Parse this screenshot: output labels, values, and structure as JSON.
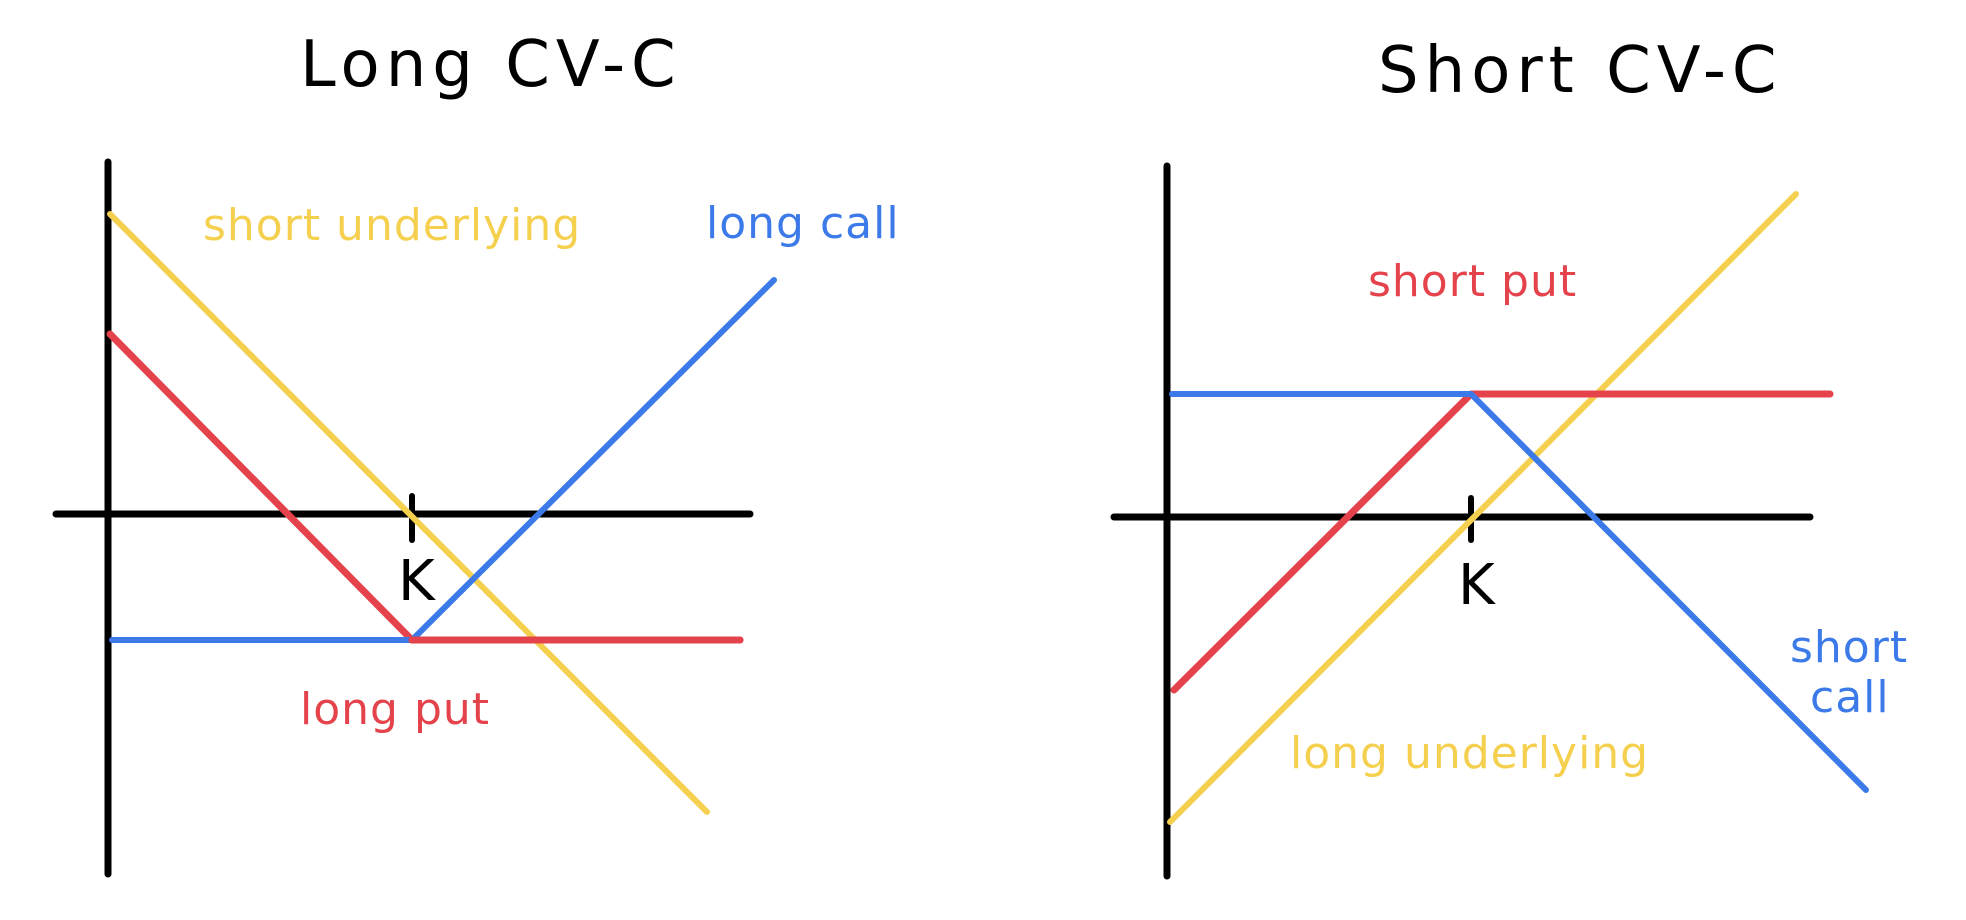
{
  "colors": {
    "axis": "#000000",
    "underlying": "#f5d04f",
    "call": "#3b7ae8",
    "put": "#e5434b",
    "background": "#ffffff"
  },
  "panels": [
    {
      "title": "Long CV-C",
      "strike_label": "K",
      "labels": {
        "underlying": "short underlying",
        "call": "long call",
        "put": "long put"
      }
    },
    {
      "title": "Short CV-C",
      "strike_label": "K",
      "labels": {
        "underlying": "long underlying",
        "call_line1": "short",
        "call_line2": "call",
        "put": "short put"
      }
    }
  ]
}
